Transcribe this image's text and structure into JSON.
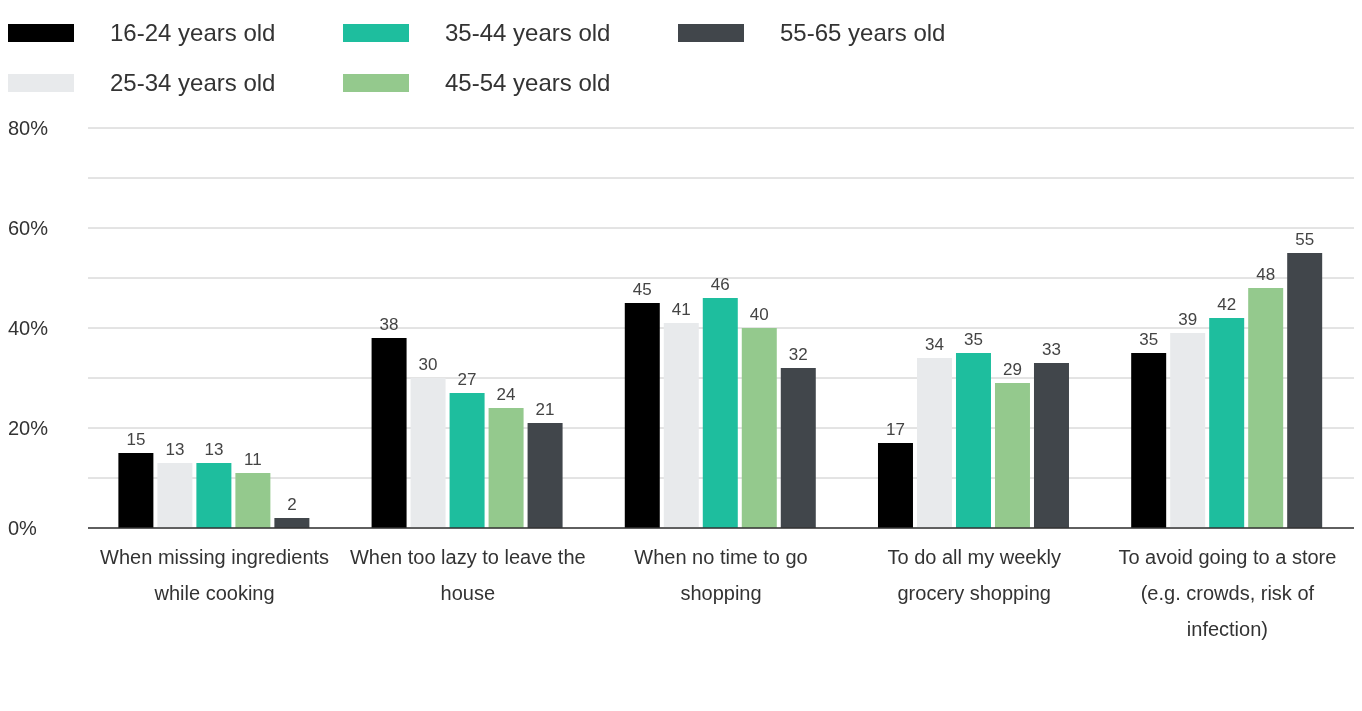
{
  "chart_data": {
    "type": "bar",
    "categories": [
      "When missing ingredients while cooking",
      "When too lazy to leave the house",
      "When no time to go shopping",
      "To do all my weekly grocery shopping",
      "To avoid going to a store (e.g. crowds, risk of infection)"
    ],
    "series": [
      {
        "name": "16-24 years old",
        "color": "#000000",
        "values": [
          15,
          38,
          45,
          17,
          35
        ]
      },
      {
        "name": "25-34 years old",
        "color": "#e8eaec",
        "values": [
          13,
          30,
          41,
          34,
          39
        ]
      },
      {
        "name": "35-44 years old",
        "color": "#1ebe9e",
        "values": [
          13,
          27,
          46,
          35,
          42
        ]
      },
      {
        "name": "45-54 years old",
        "color": "#94c98d",
        "values": [
          11,
          24,
          40,
          29,
          48
        ]
      },
      {
        "name": "55-65 years old",
        "color": "#41464b",
        "values": [
          2,
          21,
          32,
          33,
          55
        ]
      }
    ],
    "ylim": [
      0,
      80
    ],
    "yticks": [
      {
        "value": 0,
        "label": "0%"
      },
      {
        "value": 10,
        "label": null
      },
      {
        "value": 20,
        "label": "20%"
      },
      {
        "value": 30,
        "label": null
      },
      {
        "value": 40,
        "label": "40%"
      },
      {
        "value": 50,
        "label": null
      },
      {
        "value": 60,
        "label": "60%"
      },
      {
        "value": 70,
        "label": null
      },
      {
        "value": 80,
        "label": "80%"
      }
    ],
    "grid": "y",
    "legend": "top left",
    "data_labels": true
  }
}
